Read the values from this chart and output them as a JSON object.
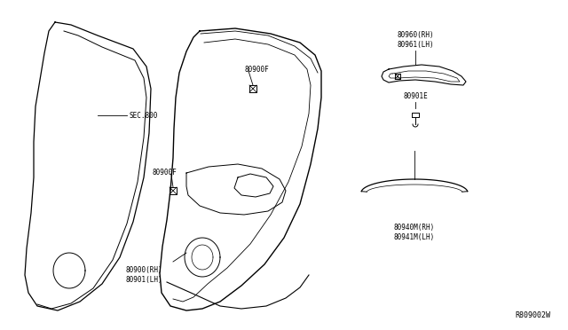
{
  "bg_color": "#ffffff",
  "line_color": "#000000",
  "text_color": "#000000",
  "fig_width": 6.4,
  "fig_height": 3.72,
  "dpi": 100,
  "labels": {
    "sec800": "SEC.800",
    "80900F_top": "80900F",
    "80900F_mid": "80900F",
    "80900_rh_lh": "80900(RH)\n80901(LH)",
    "80960_rh_lh": "80960(RH)\n80961(LH)",
    "80901E": "80901E",
    "80940M_rh_lh": "80940M(RH)\n80941M(LH)",
    "ref": "R809002W"
  },
  "font_size_labels": 5.5,
  "font_size_ref": 5.5
}
